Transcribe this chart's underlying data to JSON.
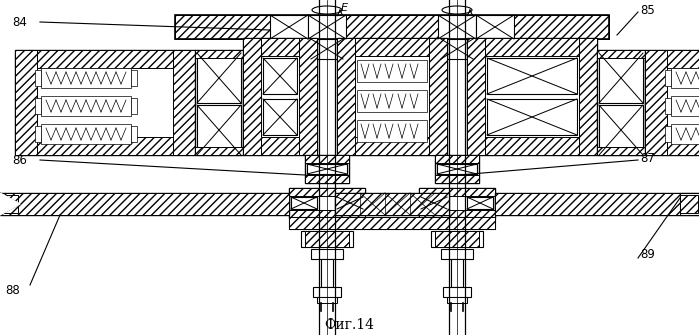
{
  "title": "Фиг.14",
  "bg_color": "#ffffff",
  "line_color": "#000000",
  "fig_label_fontsize": 10,
  "annotation_fontsize": 8.5
}
